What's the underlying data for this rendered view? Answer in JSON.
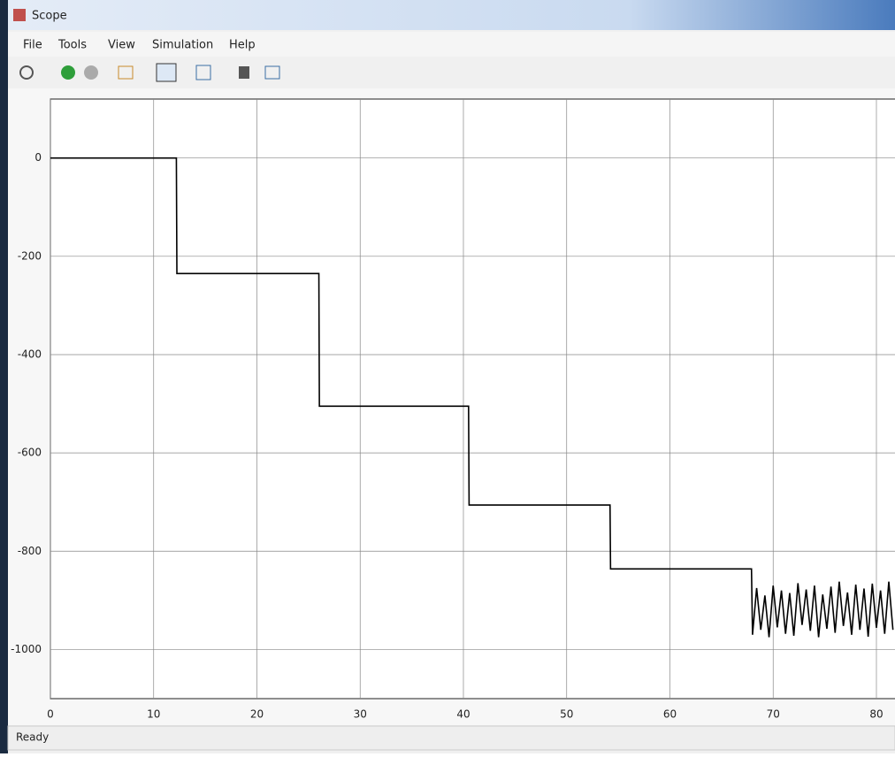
{
  "window": {
    "title": "Scope",
    "menu": [
      "File",
      "Tools",
      "View",
      "Simulation",
      "Help"
    ],
    "status": "Ready"
  },
  "chart_data": {
    "type": "line",
    "color": "#000000",
    "x": [
      0,
      12.2,
      12.25,
      26.0,
      26.05,
      40.5,
      40.55,
      54.2,
      54.25,
      67.9,
      68,
      68.4,
      68.8,
      69.2,
      69.6,
      70,
      70.4,
      70.8,
      71.2,
      71.6,
      72,
      72.4,
      72.8,
      73.2,
      73.6,
      74,
      74.4,
      74.8,
      75.2,
      75.6,
      76,
      76.4,
      76.8,
      77.2,
      77.6,
      78,
      78.4,
      78.8,
      79.2,
      79.6,
      80,
      80.4,
      80.8,
      81.2,
      81.6
    ],
    "values": [
      0,
      0,
      -235,
      -235,
      -505,
      -505,
      -706,
      -706,
      -836,
      -836,
      -970,
      -875,
      -960,
      -890,
      -975,
      -870,
      -955,
      -880,
      -968,
      -885,
      -972,
      -865,
      -950,
      -878,
      -962,
      -870,
      -975,
      -888,
      -958,
      -872,
      -966,
      -862,
      -952,
      -884,
      -970,
      -868,
      -960,
      -876,
      -974,
      -866,
      -956,
      -880,
      -968,
      -862,
      -960
    ],
    "xlim": [
      0,
      81.8
    ],
    "ylim": [
      -1100,
      120
    ],
    "xticks": [
      0,
      10,
      20,
      30,
      40,
      50,
      60,
      70,
      80
    ],
    "yticks": [
      0,
      -200,
      -400,
      -600,
      -800,
      -1000
    ],
    "grid": true
  }
}
